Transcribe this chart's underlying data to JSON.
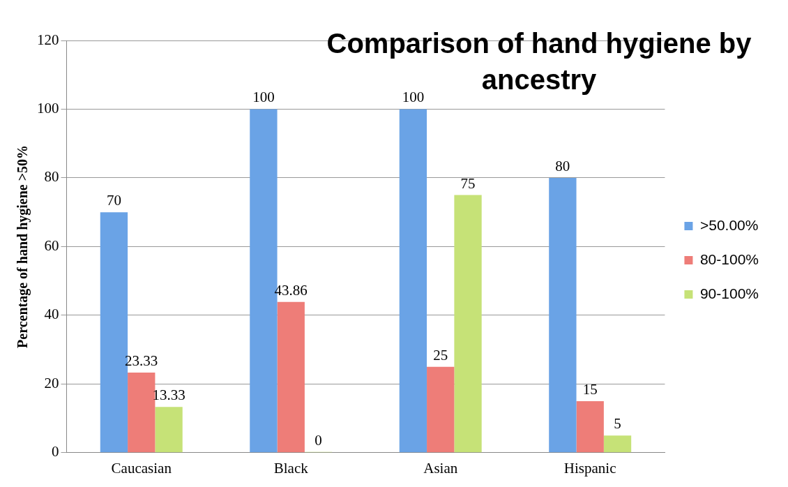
{
  "chart_data": {
    "type": "bar",
    "title": "Comparison of hand hygiene by ancestry",
    "ylabel": "Percentage of hand hygiene >50%",
    "categories": [
      "Caucasian",
      "Black",
      "Asian",
      "Hispanic"
    ],
    "series": [
      {
        "name": ">50.00%",
        "color": "#6aa3e6",
        "values": [
          70,
          100,
          100,
          80
        ]
      },
      {
        "name": "80-100%",
        "color": "#ee7d78",
        "values": [
          23.33,
          43.86,
          25,
          15
        ]
      },
      {
        "name": "90-100%",
        "color": "#c6e277",
        "values": [
          13.33,
          0,
          75,
          5
        ]
      }
    ],
    "ylim": [
      0,
      120
    ],
    "yticks": [
      0,
      20,
      40,
      60,
      80,
      100,
      120
    ],
    "grid": "y",
    "legend": "right",
    "data_labels": true
  }
}
